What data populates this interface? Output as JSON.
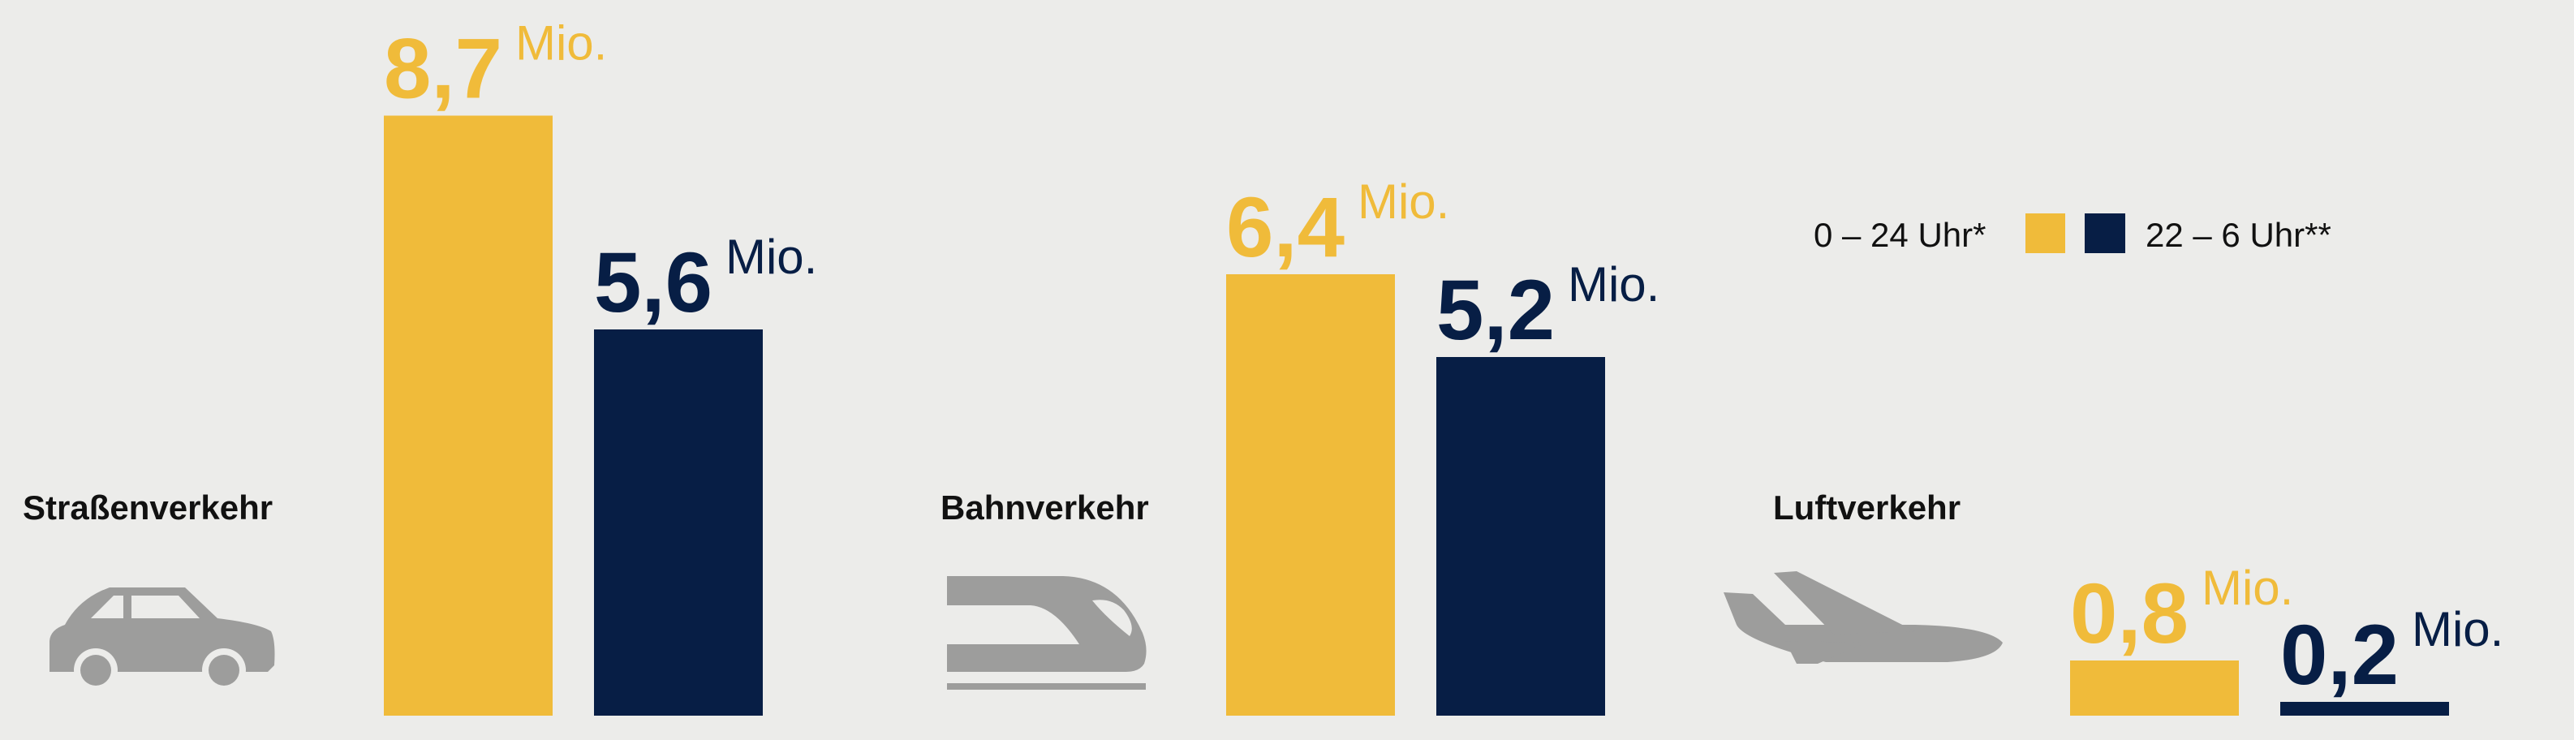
{
  "chart_data": {
    "type": "bar",
    "categories": [
      "Straßenverkehr",
      "Bahnverkehr",
      "Luftverkehr"
    ],
    "unit": "Mio.",
    "series": [
      {
        "name": "0 – 24 Uhr*",
        "color": "#f0bb3a",
        "values": [
          8.7,
          6.4,
          0.8
        ],
        "value_labels": [
          "8,7",
          "6,4",
          "0,8"
        ]
      },
      {
        "name": "22 – 6 Uhr**",
        "color": "#071e45",
        "values": [
          5.6,
          5.2,
          0.2
        ],
        "value_labels": [
          "5,6",
          "5,2",
          "0,2"
        ]
      }
    ]
  }
}
